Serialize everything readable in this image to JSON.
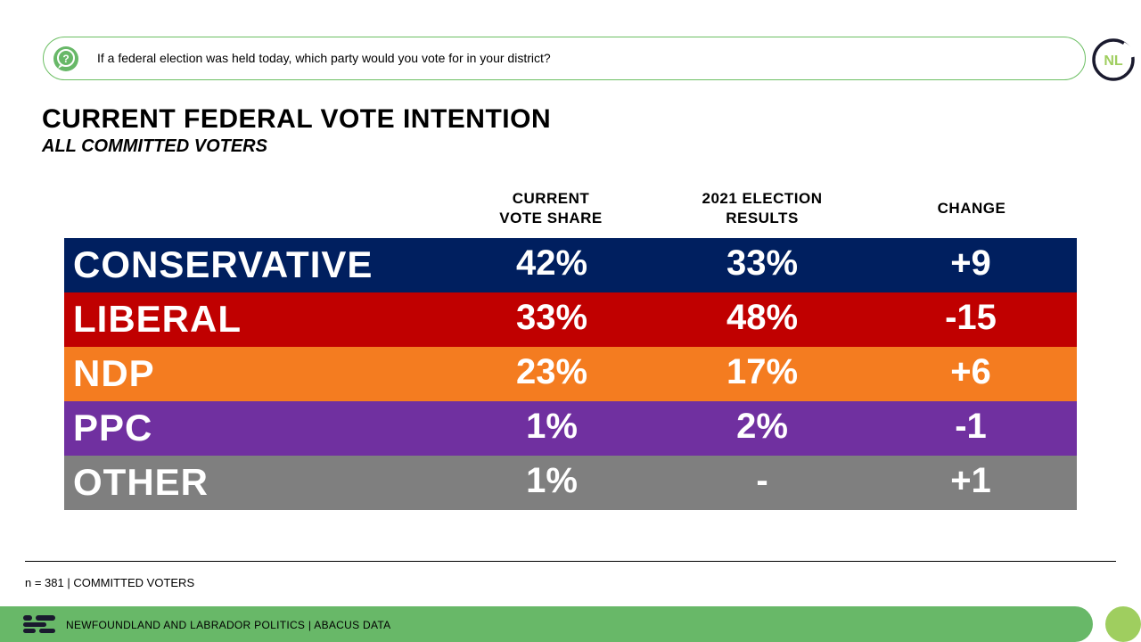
{
  "question": "If a federal election was held today, which party would you vote for in your district?",
  "logo_text": "NL",
  "chart_data": {
    "type": "table",
    "title": "CURRENT FEDERAL VOTE INTENTION",
    "subtitle": "ALL COMMITTED VOTERS",
    "columns": [
      {
        "line1": "CURRENT",
        "line2": "VOTE SHARE"
      },
      {
        "line1": "2021 ELECTION",
        "line2": "RESULTS"
      },
      {
        "line1": "CHANGE",
        "line2": ""
      }
    ],
    "rows": [
      {
        "party": "CONSERVATIVE",
        "current": "42%",
        "previous": "33%",
        "change": "+9",
        "color": "#001f5f"
      },
      {
        "party": "LIBERAL",
        "current": "33%",
        "previous": "48%",
        "change": "-15",
        "color": "#c00000"
      },
      {
        "party": "NDP",
        "current": "23%",
        "previous": "17%",
        "change": "+6",
        "color": "#f47c20"
      },
      {
        "party": "PPC",
        "current": "1%",
        "previous": "2%",
        "change": "-1",
        "color": "#7030a0"
      },
      {
        "party": "OTHER",
        "current": "1%",
        "previous": "-",
        "change": "+1",
        "color": "#7f7f7f"
      }
    ]
  },
  "footnote": "n = 381 | COMMITTED VOTERS",
  "footer": "NEWFOUNDLAND AND LABRADOR POLITICS  |  ABACUS DATA",
  "colors": {
    "accent_green": "#68b868",
    "light_green": "#9fce5f",
    "navy": "#1a1a2e"
  }
}
